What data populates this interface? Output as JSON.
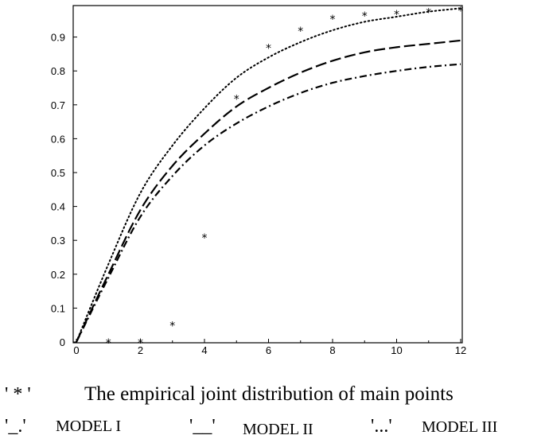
{
  "chart_data": {
    "type": "line",
    "title": "",
    "xlabel": "",
    "ylabel": "",
    "xlim": [
      0,
      12
    ],
    "ylim": [
      0,
      1
    ],
    "x_ticks": [
      "0",
      "2",
      "4",
      "6",
      "8",
      "10",
      "12"
    ],
    "y_ticks": [
      "0",
      "0.1",
      "0.2",
      "0.3",
      "0.4",
      "0.5",
      "0.6",
      "0.7",
      "0.8",
      "0.9"
    ],
    "grid": false,
    "legend_position": "bottom",
    "empirical": {
      "marker": "*",
      "x": [
        1,
        2,
        3,
        4,
        5,
        6,
        7,
        8,
        9,
        10,
        11,
        12
      ],
      "y": [
        0.0,
        0.0,
        0.05,
        0.31,
        0.72,
        0.87,
        0.92,
        0.955,
        0.965,
        0.97,
        0.975,
        0.98
      ]
    },
    "series": [
      {
        "style": "dash-dot",
        "x": [
          0,
          1,
          2,
          3,
          4,
          5,
          6,
          7,
          8,
          9,
          10,
          11,
          12
        ],
        "y": [
          0.0,
          0.19,
          0.37,
          0.49,
          0.58,
          0.645,
          0.695,
          0.735,
          0.765,
          0.785,
          0.8,
          0.812,
          0.82
        ]
      },
      {
        "style": "long-dash",
        "x": [
          0,
          1,
          2,
          3,
          4,
          5,
          6,
          7,
          8,
          9,
          10,
          11,
          12
        ],
        "y": [
          0.0,
          0.2,
          0.39,
          0.52,
          0.615,
          0.695,
          0.75,
          0.795,
          0.83,
          0.855,
          0.87,
          0.88,
          0.89
        ]
      },
      {
        "style": "dotted",
        "x": [
          0,
          1,
          2,
          3,
          4,
          5,
          6,
          7,
          8,
          9,
          10,
          11,
          12
        ],
        "y": [
          0.0,
          0.23,
          0.44,
          0.58,
          0.69,
          0.78,
          0.84,
          0.885,
          0.92,
          0.945,
          0.96,
          0.975,
          0.985
        ]
      }
    ]
  },
  "legend": {
    "empirical_symbol": "' * '",
    "empirical_label": "The empirical joint distribution of main points",
    "model1_symbol": "'_.'",
    "model1_label": "MODEL I",
    "model2_symbol": "'__'",
    "model2_label": "MODEL II",
    "model3_symbol": "'...'",
    "model3_label": "MODEL III"
  }
}
